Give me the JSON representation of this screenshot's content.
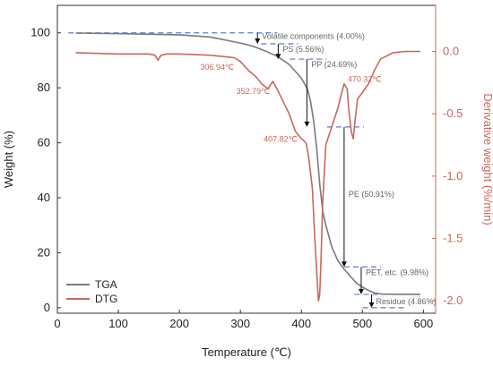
{
  "chart_data": {
    "type": "line",
    "xlabel": "Temperature (℃)",
    "ylabel": "Weight (%)",
    "ylabel_right": "Derivative weight (%/min)",
    "xlim": [
      0,
      620
    ],
    "ylim": [
      -2,
      110
    ],
    "ylim_right": [
      -2.1,
      0.37
    ],
    "x_ticks": [
      0,
      100,
      200,
      300,
      400,
      500,
      600
    ],
    "y_ticks": [
      0,
      20,
      40,
      60,
      80,
      100
    ],
    "y_ticks_right": [
      "0.0",
      "-0.5",
      "-1.0",
      "-1.5",
      "-2.0"
    ],
    "y_ticks_right_values": [
      0,
      -0.5,
      -1.0,
      -1.5,
      -2.0
    ],
    "legend_position": "bottom-left",
    "colors": {
      "tga": "#7a7a7a",
      "dtg": "#c9685a",
      "guide": "#5b77d6",
      "axis_right": "#c9685a"
    },
    "series": [
      {
        "name": "TGA",
        "axis": "left",
        "x": [
          30,
          100,
          200,
          250,
          300,
          320,
          340,
          360,
          380,
          400,
          410,
          415,
          420,
          425,
          430,
          435,
          440,
          450,
          460,
          470,
          480,
          490,
          500,
          510,
          520,
          530,
          550,
          560,
          580,
          595
        ],
        "y": [
          99.9,
          99.7,
          99.3,
          98.5,
          96.3,
          95.2,
          93.5,
          91.5,
          88.5,
          83.5,
          79.5,
          75,
          68,
          58,
          45,
          35,
          30,
          22,
          17,
          14,
          11.5,
          9,
          7.5,
          6.3,
          5.4,
          5,
          4.9,
          4.88,
          4.87,
          4.86
        ]
      },
      {
        "name": "DTG",
        "axis": "right",
        "x": [
          30,
          100,
          150,
          160,
          165,
          170,
          180,
          200,
          250,
          290,
          300,
          307,
          315,
          325,
          335,
          345,
          353,
          360,
          370,
          380,
          390,
          400,
          405,
          408,
          412,
          418,
          422,
          426,
          428,
          430,
          432,
          435,
          440,
          450,
          460,
          465,
          470,
          475,
          478,
          482,
          485,
          488,
          492,
          500,
          510,
          520,
          530,
          550,
          570,
          595
        ],
        "y": [
          -0.01,
          -0.02,
          -0.02,
          -0.03,
          -0.07,
          -0.03,
          -0.02,
          -0.02,
          -0.03,
          -0.05,
          -0.08,
          -0.12,
          -0.16,
          -0.2,
          -0.26,
          -0.3,
          -0.24,
          -0.3,
          -0.4,
          -0.5,
          -0.64,
          -0.7,
          -0.72,
          -0.74,
          -0.85,
          -1.1,
          -1.5,
          -1.85,
          -2.0,
          -1.95,
          -1.7,
          -1.2,
          -0.75,
          -0.6,
          -0.45,
          -0.35,
          -0.26,
          -0.3,
          -0.48,
          -0.65,
          -0.7,
          -0.55,
          -0.38,
          -0.33,
          -0.26,
          -0.15,
          -0.06,
          -0.01,
          0,
          0
        ]
      }
    ],
    "annotations": [
      {
        "text": "Volatile components (4.00%)",
        "x": 328,
        "y": 100,
        "from_y": 100,
        "to_y": 96
      },
      {
        "text": "PS (5.56%)",
        "x": 362,
        "y": 96,
        "from_y": 96,
        "to_y": 90.44
      },
      {
        "text": "PP (24.69%)",
        "x": 409,
        "y": 90.44,
        "from_y": 90.44,
        "to_y": 65.75
      },
      {
        "text": "PE (50.91%)",
        "x": 470,
        "y": 65.75,
        "from_y": 65.75,
        "to_y": 14.84
      },
      {
        "text": "PET, etc. (9.98%)",
        "x": 498,
        "y": 14.84,
        "from_y": 14.84,
        "to_y": 4.86
      },
      {
        "text": "Residue (4.86%)",
        "x": 515,
        "y": 4.86,
        "from_y": 4.86,
        "to_y": 0
      }
    ],
    "peak_labels": [
      {
        "text": "306.94℃",
        "x": 307,
        "y": -0.12
      },
      {
        "text": "352.79℃",
        "x": 353,
        "y": -0.24
      },
      {
        "text": "407.82℃",
        "x": 408,
        "y": -0.74
      },
      {
        "text": "470.32℃",
        "x": 470,
        "y": -0.26
      }
    ]
  }
}
